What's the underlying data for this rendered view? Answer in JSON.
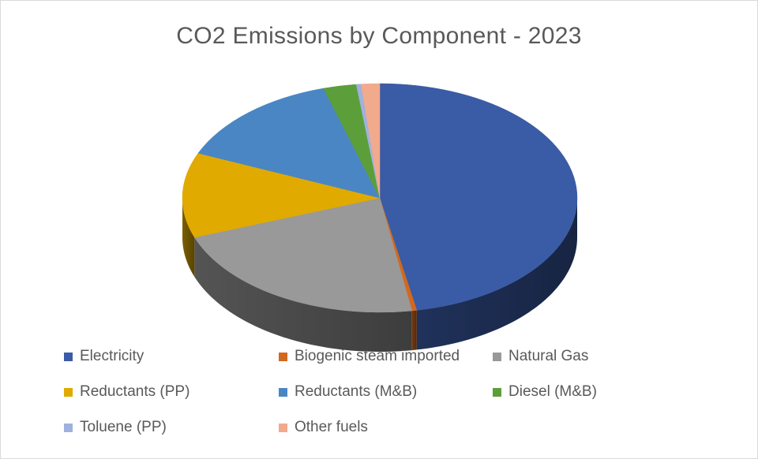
{
  "chart_data": {
    "type": "pie",
    "title": "CO2 Emissions by Component  - 2023",
    "legend_position": "bottom",
    "slices": [
      {
        "label": "Electricity",
        "value": 47.0,
        "color": "#3a5ba5"
      },
      {
        "label": "Biogenic steam imported",
        "value": 0.4,
        "color": "#d2691e"
      },
      {
        "label": "Natural Gas",
        "value": 22.0,
        "color": "#999999"
      },
      {
        "label": "Reductants (PP)",
        "value": 12.0,
        "color": "#e0aa00"
      },
      {
        "label": "Reductants (M&B)",
        "value": 14.0,
        "color": "#4a86c4"
      },
      {
        "label": "Diesel (M&B)",
        "value": 2.7,
        "color": "#5c9e3a"
      },
      {
        "label": "Toluene (PP)",
        "value": 0.4,
        "color": "#9fb1dc"
      },
      {
        "label": "Other fuels",
        "value": 1.5,
        "color": "#f2aa8c"
      }
    ]
  }
}
